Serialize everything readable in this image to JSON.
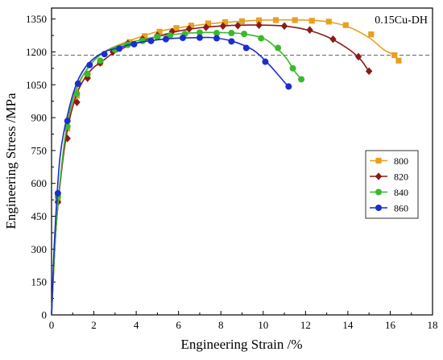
{
  "chart_data": {
    "type": "line",
    "title": "",
    "annotation": "0.15Cu-DH",
    "xlabel": "Engineering Strain /%",
    "ylabel": "Engineering Stress /MPa",
    "xlim": [
      0,
      18
    ],
    "ylim": [
      0,
      1400
    ],
    "xticks": [
      0,
      2,
      4,
      6,
      8,
      10,
      12,
      14,
      16,
      18
    ],
    "yticks": [
      0,
      150,
      300,
      450,
      600,
      750,
      900,
      1050,
      1200,
      1350
    ],
    "reference_line": {
      "y": 1185,
      "style": "dashed",
      "color": "#666666"
    },
    "legend_position": "right-middle",
    "grid": false,
    "series": [
      {
        "name": "800",
        "color": "#E8A020",
        "marker": "square",
        "curve": [
          [
            0,
            0
          ],
          [
            0.2,
            380
          ],
          [
            0.5,
            700
          ],
          [
            0.8,
            900
          ],
          [
            1.2,
            1030
          ],
          [
            1.6,
            1110
          ],
          [
            2.0,
            1160
          ],
          [
            2.5,
            1200
          ],
          [
            3.0,
            1225
          ],
          [
            4.0,
            1262
          ],
          [
            5.0,
            1292
          ],
          [
            6.0,
            1310
          ],
          [
            7.0,
            1323
          ],
          [
            8.0,
            1333
          ],
          [
            9.0,
            1340
          ],
          [
            10.0,
            1345
          ],
          [
            11.0,
            1346
          ],
          [
            12.0,
            1345
          ],
          [
            13.0,
            1338
          ],
          [
            14.0,
            1315
          ],
          [
            15.0,
            1265
          ],
          [
            15.7,
            1210
          ],
          [
            16.2,
            1185
          ],
          [
            16.4,
            1160
          ]
        ],
        "markers": [
          [
            0.3,
            520
          ],
          [
            0.75,
            850
          ],
          [
            1.2,
            1000
          ],
          [
            1.7,
            1090
          ],
          [
            2.3,
            1150
          ],
          [
            3.0,
            1210
          ],
          [
            3.7,
            1245
          ],
          [
            4.4,
            1272
          ],
          [
            5.1,
            1292
          ],
          [
            5.9,
            1309
          ],
          [
            6.6,
            1320
          ],
          [
            7.4,
            1330
          ],
          [
            8.2,
            1336
          ],
          [
            9.0,
            1340
          ],
          [
            9.8,
            1344
          ],
          [
            10.6,
            1345
          ],
          [
            11.5,
            1345
          ],
          [
            12.3,
            1342
          ],
          [
            13.1,
            1338
          ],
          [
            13.9,
            1322
          ],
          [
            15.1,
            1280
          ],
          [
            16.2,
            1185
          ],
          [
            16.4,
            1160
          ]
        ]
      },
      {
        "name": "820",
        "color": "#8B1A1A",
        "marker": "diamond",
        "curve": [
          [
            0,
            0
          ],
          [
            0.2,
            380
          ],
          [
            0.5,
            680
          ],
          [
            0.8,
            870
          ],
          [
            1.2,
            1010
          ],
          [
            1.6,
            1085
          ],
          [
            2.0,
            1130
          ],
          [
            2.5,
            1165
          ],
          [
            3.0,
            1200
          ],
          [
            4.0,
            1240
          ],
          [
            5.0,
            1270
          ],
          [
            6.0,
            1295
          ],
          [
            7.0,
            1310
          ],
          [
            8.0,
            1318
          ],
          [
            9.0,
            1322
          ],
          [
            10.0,
            1322
          ],
          [
            11.0,
            1318
          ],
          [
            12.0,
            1302
          ],
          [
            13.0,
            1270
          ],
          [
            14.0,
            1215
          ],
          [
            14.6,
            1165
          ],
          [
            15.0,
            1110
          ]
        ],
        "markers": [
          [
            0.3,
            515
          ],
          [
            0.75,
            805
          ],
          [
            1.2,
            970
          ],
          [
            1.7,
            1080
          ],
          [
            2.3,
            1150
          ],
          [
            2.9,
            1200
          ],
          [
            3.6,
            1238
          ],
          [
            4.3,
            1258
          ],
          [
            5.0,
            1275
          ],
          [
            5.7,
            1293
          ],
          [
            6.5,
            1305
          ],
          [
            7.3,
            1312
          ],
          [
            8.1,
            1318
          ],
          [
            8.8,
            1320
          ],
          [
            9.8,
            1322
          ],
          [
            11.0,
            1318
          ],
          [
            12.2,
            1300
          ],
          [
            13.3,
            1258
          ],
          [
            14.5,
            1178
          ],
          [
            15.0,
            1112
          ]
        ]
      },
      {
        "name": "840",
        "color": "#3CB82E",
        "marker": "circle",
        "curve": [
          [
            0,
            0
          ],
          [
            0.2,
            380
          ],
          [
            0.5,
            700
          ],
          [
            0.8,
            900
          ],
          [
            1.2,
            1040
          ],
          [
            1.6,
            1110
          ],
          [
            2.0,
            1160
          ],
          [
            2.5,
            1200
          ],
          [
            3.0,
            1222
          ],
          [
            4.0,
            1250
          ],
          [
            5.0,
            1270
          ],
          [
            6.0,
            1282
          ],
          [
            7.0,
            1288
          ],
          [
            8.0,
            1288
          ],
          [
            9.0,
            1283
          ],
          [
            10.0,
            1262
          ],
          [
            10.6,
            1220
          ],
          [
            11.1,
            1170
          ],
          [
            11.5,
            1110
          ],
          [
            11.8,
            1075
          ]
        ],
        "markers": [
          [
            0.3,
            540
          ],
          [
            0.75,
            860
          ],
          [
            1.2,
            1010
          ],
          [
            1.7,
            1100
          ],
          [
            2.3,
            1160
          ],
          [
            3.0,
            1210
          ],
          [
            3.6,
            1232
          ],
          [
            4.3,
            1250
          ],
          [
            5.0,
            1268
          ],
          [
            5.6,
            1275
          ],
          [
            6.3,
            1282
          ],
          [
            7.0,
            1288
          ],
          [
            7.8,
            1286
          ],
          [
            8.5,
            1286
          ],
          [
            9.1,
            1282
          ],
          [
            9.9,
            1262
          ],
          [
            10.7,
            1218
          ],
          [
            11.4,
            1125
          ],
          [
            11.8,
            1075
          ]
        ]
      },
      {
        "name": "860",
        "color": "#1A2ECC",
        "marker": "circle",
        "curve": [
          [
            0,
            0
          ],
          [
            0.15,
            360
          ],
          [
            0.4,
            720
          ],
          [
            0.8,
            930
          ],
          [
            1.2,
            1060
          ],
          [
            1.6,
            1130
          ],
          [
            2.0,
            1170
          ],
          [
            2.5,
            1200
          ],
          [
            3.0,
            1215
          ],
          [
            4.0,
            1240
          ],
          [
            5.0,
            1255
          ],
          [
            6.0,
            1263
          ],
          [
            7.0,
            1265
          ],
          [
            7.6,
            1265
          ],
          [
            8.5,
            1250
          ],
          [
            9.5,
            1210
          ],
          [
            10.2,
            1150
          ],
          [
            10.8,
            1085
          ],
          [
            11.2,
            1040
          ]
        ],
        "markers": [
          [
            0.3,
            555
          ],
          [
            0.75,
            885
          ],
          [
            1.25,
            1055
          ],
          [
            1.8,
            1140
          ],
          [
            2.5,
            1190
          ],
          [
            3.2,
            1215
          ],
          [
            3.9,
            1235
          ],
          [
            4.7,
            1250
          ],
          [
            5.4,
            1258
          ],
          [
            6.2,
            1264
          ],
          [
            7.0,
            1265
          ],
          [
            7.8,
            1262
          ],
          [
            8.5,
            1248
          ],
          [
            9.2,
            1218
          ],
          [
            10.1,
            1155
          ],
          [
            11.2,
            1042
          ]
        ]
      }
    ]
  }
}
